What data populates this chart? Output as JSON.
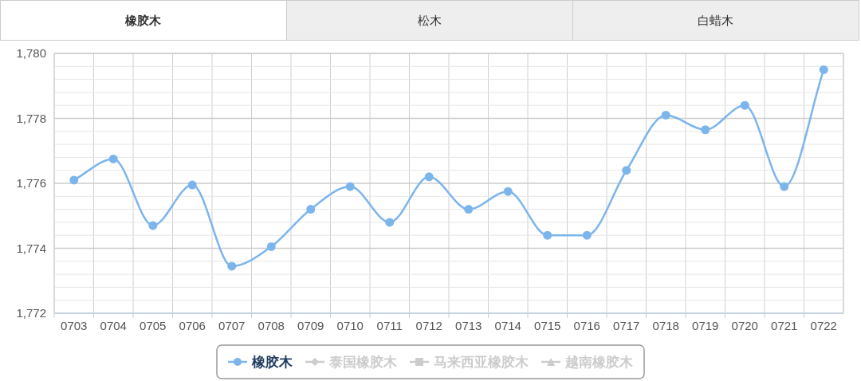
{
  "chart_data": {
    "type": "line",
    "annotations": [
      "橡胶木",
      "松木",
      "白蜡木"
    ],
    "categories": [
      "0703",
      "0704",
      "0705",
      "0706",
      "0707",
      "0708",
      "0709",
      "0710",
      "0711",
      "0712",
      "0713",
      "0714",
      "0715",
      "0716",
      "0717",
      "0718",
      "0719",
      "0720",
      "0721",
      "0722"
    ],
    "series": [
      {
        "name": "橡胶木",
        "color": "#7cb5ec",
        "marker": "circle",
        "values": [
          1776.1,
          1776.75,
          1774.7,
          1775.95,
          1773.45,
          1774.05,
          1775.2,
          1775.9,
          1774.8,
          1776.2,
          1775.2,
          1775.75,
          1774.4,
          1774.4,
          1776.4,
          1778.1,
          1777.65,
          1778.4,
          1775.9,
          1779.5
        ]
      },
      {
        "name": "泰国橡胶木",
        "color": "#cccccc",
        "marker": "diamond",
        "values": [
          null,
          null,
          null,
          null,
          null,
          null,
          null,
          null,
          null,
          null,
          null,
          null,
          null,
          null,
          null,
          null,
          null,
          null,
          null,
          null
        ]
      },
      {
        "name": "马来西亚橡胶木",
        "color": "#cccccc",
        "marker": "square",
        "values": [
          null,
          null,
          null,
          null,
          null,
          null,
          null,
          null,
          null,
          null,
          null,
          null,
          null,
          null,
          null,
          null,
          null,
          null,
          null,
          null
        ]
      },
      {
        "name": "越南橡胶木",
        "color": "#cccccc",
        "marker": "triangle",
        "values": [
          null,
          null,
          null,
          null,
          null,
          null,
          null,
          null,
          null,
          null,
          null,
          null,
          null,
          null,
          null,
          null,
          null,
          null,
          null,
          null
        ]
      }
    ],
    "ylim": [
      1772,
      1780
    ],
    "yticks": [
      {
        "value": 1772,
        "label": "1,772"
      },
      {
        "value": 1772.4,
        "label": null
      },
      {
        "value": 1772.8,
        "label": null
      },
      {
        "value": 1773.2,
        "label": null
      },
      {
        "value": 1773.6,
        "label": null
      },
      {
        "value": 1774,
        "label": "1,774"
      },
      {
        "value": 1774.4,
        "label": null
      },
      {
        "value": 1774.8,
        "label": null
      },
      {
        "value": 1775.2,
        "label": null
      },
      {
        "value": 1775.6,
        "label": null
      },
      {
        "value": 1776,
        "label": "1,776"
      },
      {
        "value": 1776.4,
        "label": null
      },
      {
        "value": 1776.8,
        "label": null
      },
      {
        "value": 1777.2,
        "label": null
      },
      {
        "value": 1777.6,
        "label": null
      },
      {
        "value": 1778,
        "label": "1,778"
      },
      {
        "value": 1778.4,
        "label": null
      },
      {
        "value": 1778.8,
        "label": null
      },
      {
        "value": 1779.2,
        "label": null
      },
      {
        "value": 1779.6,
        "label": null
      },
      {
        "value": 1780,
        "label": "1,780"
      }
    ],
    "grid": true,
    "legend": "bottom",
    "line_style": "solid"
  }
}
